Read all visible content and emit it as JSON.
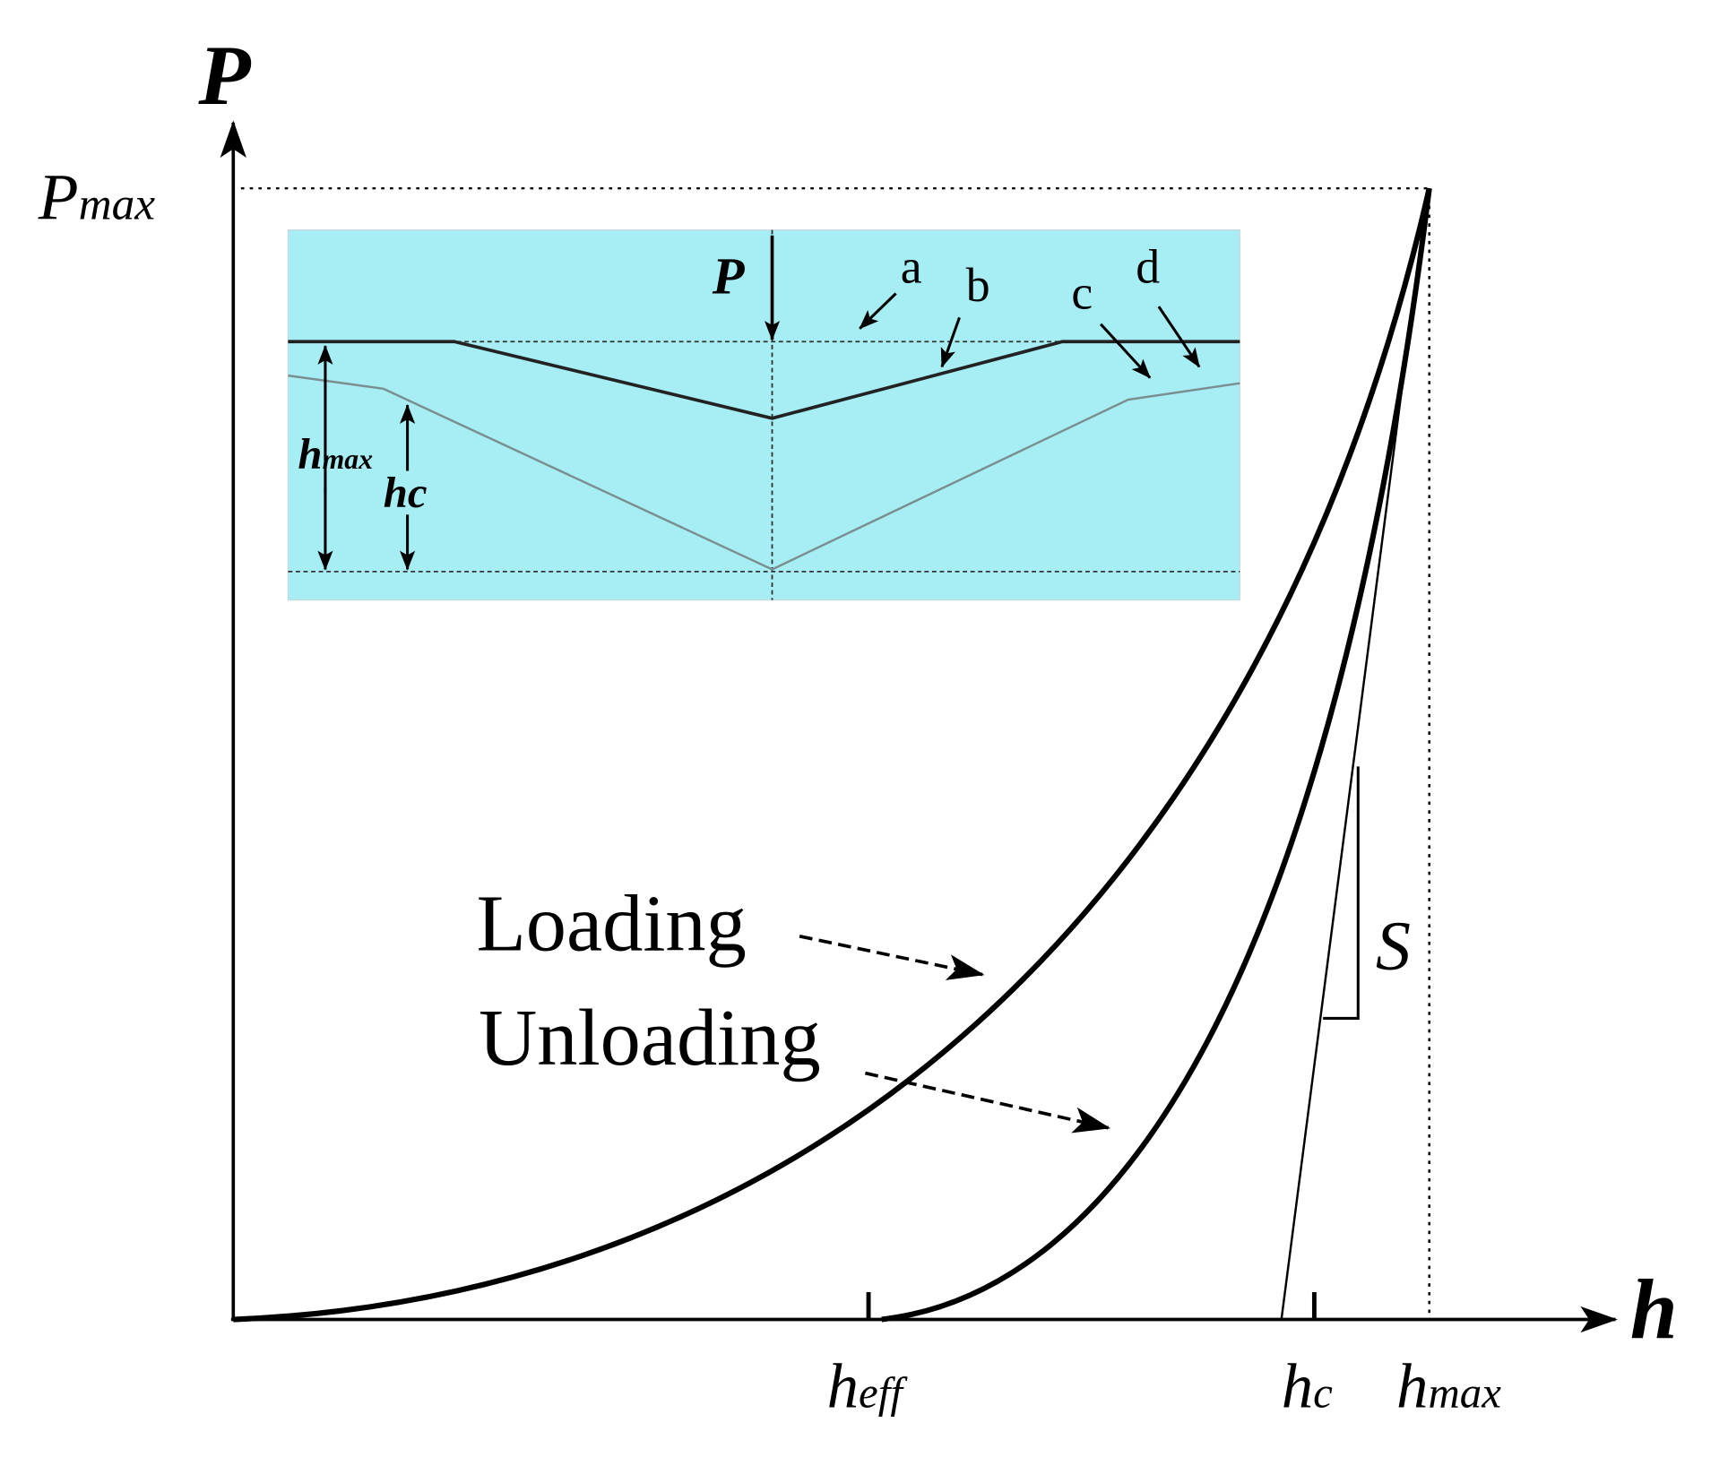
{
  "axes": {
    "y_label": "P",
    "x_label": "h",
    "y_max_label": {
      "base": "P",
      "sub": "max"
    }
  },
  "x_markers": [
    {
      "base": "h",
      "sub": "eff"
    },
    {
      "base": "h",
      "sub": "c"
    },
    {
      "base": "h",
      "sub": "max"
    }
  ],
  "curve_labels": [
    "Loading",
    "Unloading"
  ],
  "slope_label": "S",
  "inset": {
    "load_label": "P",
    "markers": [
      "a",
      "b",
      "c",
      "d"
    ],
    "depths": [
      {
        "base": "h",
        "sub": "max"
      },
      {
        "base": "h",
        "sub": "c"
      }
    ]
  }
}
